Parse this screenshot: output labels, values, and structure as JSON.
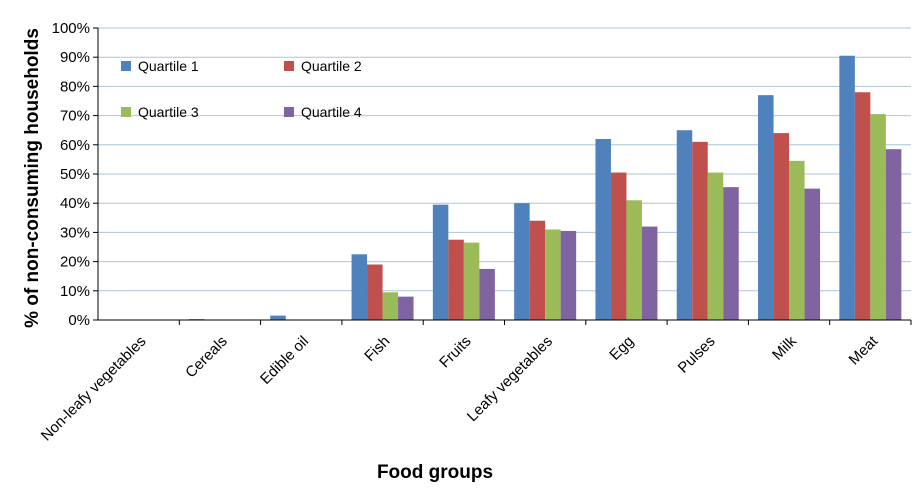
{
  "chart_data": {
    "type": "bar",
    "title": "",
    "xlabel": "Food groups",
    "ylabel": "% of non-consuming households",
    "ylim": [
      0,
      100
    ],
    "yticks": [
      "0%",
      "10%",
      "20%",
      "30%",
      "40%",
      "50%",
      "60%",
      "70%",
      "80%",
      "90%",
      "100%"
    ],
    "grid": true,
    "legend_position": "top-left",
    "categories": [
      "Non-leafy vegetables",
      "Cereals",
      "Edible oil",
      "Fish",
      "Fruits",
      "Leafy vegetables",
      "Egg",
      "Pulses",
      "Milk",
      "Meat"
    ],
    "series": [
      {
        "name": "Quartile 1",
        "color": "#4f81bd",
        "values": [
          0,
          0.3,
          1.5,
          22.5,
          39.5,
          40,
          62,
          65,
          77,
          90.5
        ]
      },
      {
        "name": "Quartile 2",
        "color": "#c0504d",
        "values": [
          0,
          0,
          0,
          19,
          27.5,
          34,
          50.5,
          61,
          64,
          78
        ]
      },
      {
        "name": "Quartile 3",
        "color": "#9bbb59",
        "values": [
          0,
          0,
          0,
          9.5,
          26.5,
          31,
          41,
          50.5,
          54.5,
          70.5
        ]
      },
      {
        "name": "Quartile 4",
        "color": "#8064a2",
        "values": [
          0,
          0,
          0,
          8,
          17.5,
          30.5,
          32,
          45.5,
          45,
          58.5
        ]
      }
    ]
  }
}
